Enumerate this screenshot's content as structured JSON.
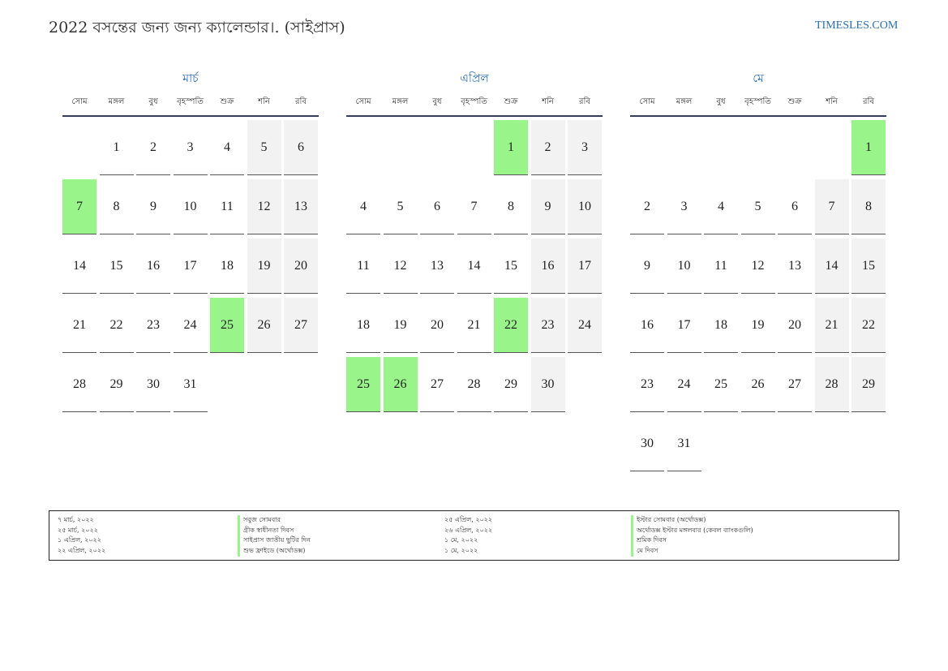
{
  "header": {
    "title": "2022 বসন্তের জন্য জন্য ক্যালেন্ডার।. (সাইপ্রাস)",
    "site": "TIMESLES.COM"
  },
  "colors": {
    "holiday": "#99f58a",
    "weekend": "#f2f2f2",
    "accent": "#2a6fb0"
  },
  "weekdays": [
    "সোম",
    "মঙ্গল",
    "বুধ",
    "বৃহস্পতি",
    "শুক্র",
    "শনি",
    "রবি"
  ],
  "months": [
    {
      "name": "মার্চ",
      "start_offset": 1,
      "days": 31,
      "holidays": [
        7,
        25
      ]
    },
    {
      "name": "এপ্রিল",
      "start_offset": 4,
      "days": 30,
      "holidays": [
        1,
        22,
        25,
        26
      ]
    },
    {
      "name": "মে",
      "start_offset": 6,
      "days": 31,
      "holidays": [
        1
      ]
    }
  ],
  "legend": {
    "col1": [
      "৭ মার্চ, ২০২২",
      "২৫ মার্চ, ২০২২",
      "১ এপ্রিল, ২০২২",
      "২২ এপ্রিল, ২০২২"
    ],
    "col2": [
      "সবুজ সোমবার",
      "গ্রীক স্বাধীনতা দিবস",
      "সাইপ্রাস জাতীয় ছুটির দিন",
      "শুভ ফ্রাইডে (অর্থোডক্স)"
    ],
    "col3": [
      "২৫ এপ্রিল, ২০২২",
      "২৬ এপ্রিল, ২০২২",
      "১ মে, ২০২২",
      "১ মে, ২০২২"
    ],
    "col4": [
      "ইস্টার সোমবার (অর্থোডক্স)",
      "অর্থোডক্স ইস্টার মঙ্গলবার (কেবল ব্যাংকগুলি)",
      "শ্রমিক দিবস",
      "মে দিবস"
    ]
  }
}
